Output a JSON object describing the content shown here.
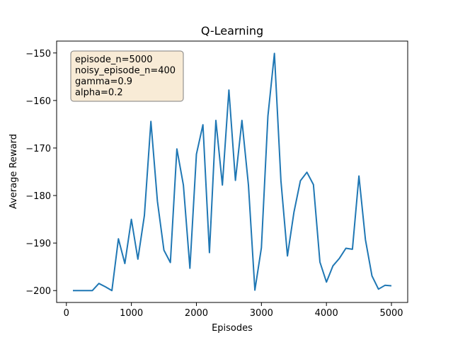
{
  "chart_data": {
    "type": "line",
    "title": "Q-Learning",
    "xlabel": "Episodes",
    "ylabel": "Average Reward",
    "xlim": [
      -150,
      5250
    ],
    "ylim": [
      -202.5,
      -147.5
    ],
    "xticks": [
      0,
      1000,
      2000,
      3000,
      4000,
      5000
    ],
    "yticks": [
      -200,
      -190,
      -180,
      -170,
      -160,
      -150
    ],
    "ytick_labels": [
      "−200",
      "−190",
      "−180",
      "−170",
      "−160",
      "−150"
    ],
    "grid": false,
    "annotation_lines": [
      "episode_n=5000",
      "noisy_episode_n=400",
      "gamma=0.9",
      "alpha=0.2"
    ],
    "annotation_colors": {
      "fill": "#f8ebd6",
      "stroke": "#7f7f7f"
    },
    "series": [
      {
        "color": "#1f77b4",
        "x": [
          100,
          200,
          300,
          400,
          500,
          600,
          700,
          800,
          900,
          1000,
          1100,
          1200,
          1300,
          1400,
          1500,
          1600,
          1700,
          1800,
          1900,
          2000,
          2100,
          2200,
          2300,
          2400,
          2500,
          2600,
          2700,
          2800,
          2900,
          3000,
          3100,
          3200,
          3300,
          3400,
          3500,
          3600,
          3700,
          3800,
          3900,
          4000,
          4100,
          4200,
          4300,
          4400,
          4500,
          4600,
          4700,
          4800,
          4900,
          5000
        ],
        "y": [
          -200,
          -200,
          -200,
          -200,
          -198.5,
          -199.2,
          -200,
          -189.1,
          -194.3,
          -185.0,
          -193.4,
          -184.2,
          -164.4,
          -181.2,
          -191.5,
          -194.1,
          -170.2,
          -177.8,
          -195.3,
          -171.3,
          -165.1,
          -192.0,
          -164.2,
          -177.8,
          -157.8,
          -176.8,
          -164.2,
          -177.8,
          -199.9,
          -191.0,
          -163.3,
          -150.1,
          -176.9,
          -192.7,
          -183.5,
          -176.9,
          -175.1,
          -177.7,
          -194.0,
          -198.2,
          -194.8,
          -193.2,
          -191.1,
          -191.3,
          -175.9,
          -189.3,
          -196.9,
          -199.7,
          -198.9,
          -199.0
        ]
      }
    ]
  }
}
